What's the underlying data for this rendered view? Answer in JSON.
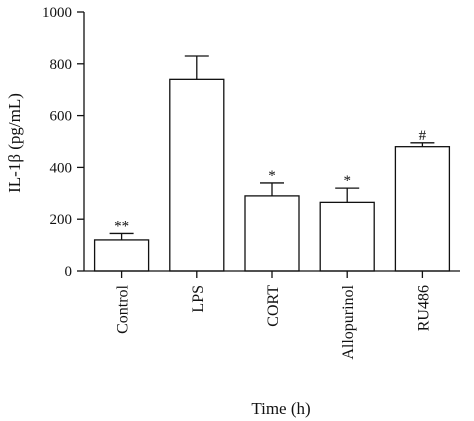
{
  "chart_data": {
    "type": "bar",
    "ylabel": "IL-1β (pg/mL)",
    "xlabel": "Time (h)",
    "categories": [
      "Control",
      "LPS",
      "CORT",
      "Allopurinol",
      "RU486"
    ],
    "values": [
      120,
      740,
      290,
      265,
      480
    ],
    "errors": [
      25,
      90,
      50,
      55,
      15
    ],
    "annotations": [
      "**",
      "",
      "*",
      "*",
      "#"
    ],
    "ylim": [
      0,
      1000
    ],
    "yticks": [
      0,
      200,
      400,
      600,
      800,
      1000
    ],
    "grid": false,
    "legend": "none",
    "bar_fill": "#ffffff",
    "bar_stroke": "#111111"
  }
}
